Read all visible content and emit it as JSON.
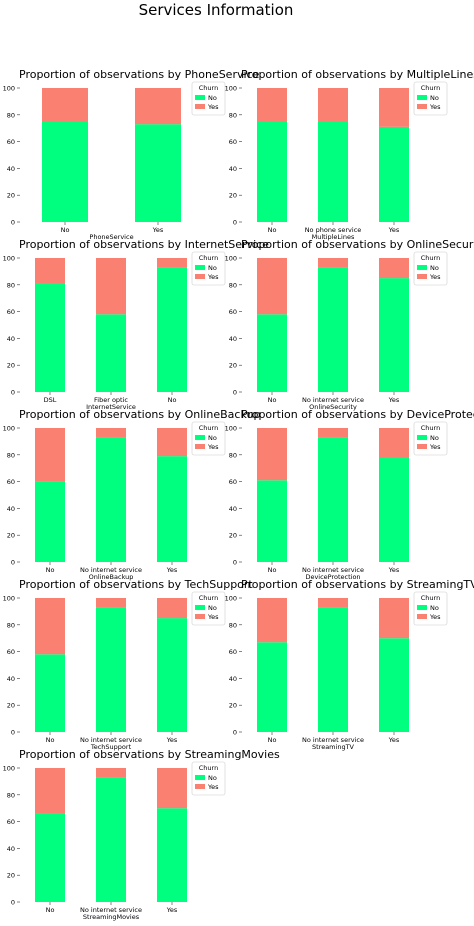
{
  "suptitle": "Services Information",
  "colors": {
    "No": "#00ff7f",
    "Yes": "#fa8072"
  },
  "legend": {
    "title": "Churn",
    "entries": [
      "No",
      "Yes"
    ],
    "placement": "upper-right"
  },
  "y_ticks": [
    0,
    20,
    40,
    60,
    80,
    100
  ],
  "chart_data": [
    {
      "type": "bar",
      "stacked": true,
      "title": "Proportion of observations by PhoneService",
      "xlabel": "PhoneService",
      "ylabel": "",
      "categories": [
        "No",
        "Yes"
      ],
      "series": [
        {
          "name": "No",
          "values": [
            75,
            73
          ]
        },
        {
          "name": "Yes",
          "values": [
            25,
            27
          ]
        }
      ],
      "ylim": [
        0,
        100
      ]
    },
    {
      "type": "bar",
      "stacked": true,
      "title": "Proportion of observations by MultipleLines",
      "xlabel": "MultipleLines",
      "ylabel": "",
      "categories": [
        "No",
        "No phone service",
        "Yes"
      ],
      "series": [
        {
          "name": "No",
          "values": [
            75,
            75,
            71
          ]
        },
        {
          "name": "Yes",
          "values": [
            25,
            25,
            29
          ]
        }
      ],
      "ylim": [
        0,
        100
      ]
    },
    {
      "type": "bar",
      "stacked": true,
      "title": "Proportion of observations by InternetService",
      "xlabel": "InternetService",
      "ylabel": "",
      "categories": [
        "DSL",
        "Fiber optic",
        "No"
      ],
      "series": [
        {
          "name": "No",
          "values": [
            81,
            58,
            93
          ]
        },
        {
          "name": "Yes",
          "values": [
            19,
            42,
            7
          ]
        }
      ],
      "ylim": [
        0,
        100
      ]
    },
    {
      "type": "bar",
      "stacked": true,
      "title": "Proportion of observations by OnlineSecurity",
      "xlabel": "OnlineSecurity",
      "ylabel": "",
      "categories": [
        "No",
        "No internet service",
        "Yes"
      ],
      "series": [
        {
          "name": "No",
          "values": [
            58,
            93,
            85
          ]
        },
        {
          "name": "Yes",
          "values": [
            42,
            7,
            15
          ]
        }
      ],
      "ylim": [
        0,
        100
      ]
    },
    {
      "type": "bar",
      "stacked": true,
      "title": "Proportion of observations by OnlineBackup",
      "xlabel": "OnlineBackup",
      "ylabel": "",
      "categories": [
        "No",
        "No internet service",
        "Yes"
      ],
      "series": [
        {
          "name": "No",
          "values": [
            60,
            93,
            79
          ]
        },
        {
          "name": "Yes",
          "values": [
            40,
            7,
            21
          ]
        }
      ],
      "ylim": [
        0,
        100
      ]
    },
    {
      "type": "bar",
      "stacked": true,
      "title": "Proportion of observations by DeviceProtection",
      "xlabel": "DeviceProtection",
      "ylabel": "",
      "categories": [
        "No",
        "No internet service",
        "Yes"
      ],
      "series": [
        {
          "name": "No",
          "values": [
            61,
            93,
            78
          ]
        },
        {
          "name": "Yes",
          "values": [
            39,
            7,
            22
          ]
        }
      ],
      "ylim": [
        0,
        100
      ]
    },
    {
      "type": "bar",
      "stacked": true,
      "title": "Proportion of observations by TechSupport",
      "xlabel": "TechSupport",
      "ylabel": "",
      "categories": [
        "No",
        "No internet service",
        "Yes"
      ],
      "series": [
        {
          "name": "No",
          "values": [
            58,
            93,
            85
          ]
        },
        {
          "name": "Yes",
          "values": [
            42,
            7,
            15
          ]
        }
      ],
      "ylim": [
        0,
        100
      ]
    },
    {
      "type": "bar",
      "stacked": true,
      "title": "Proportion of observations by StreamingTV",
      "xlabel": "StreamingTV",
      "ylabel": "",
      "categories": [
        "No",
        "No internet service",
        "Yes"
      ],
      "series": [
        {
          "name": "No",
          "values": [
            67,
            93,
            70
          ]
        },
        {
          "name": "Yes",
          "values": [
            33,
            7,
            30
          ]
        }
      ],
      "ylim": [
        0,
        100
      ]
    },
    {
      "type": "bar",
      "stacked": true,
      "title": "Proportion of observations by StreamingMovies",
      "xlabel": "StreamingMovies",
      "ylabel": "",
      "categories": [
        "No",
        "No internet service",
        "Yes"
      ],
      "series": [
        {
          "name": "No",
          "values": [
            66,
            93,
            70
          ]
        },
        {
          "name": "Yes",
          "values": [
            34,
            7,
            30
          ]
        }
      ],
      "ylim": [
        0,
        100
      ]
    }
  ]
}
